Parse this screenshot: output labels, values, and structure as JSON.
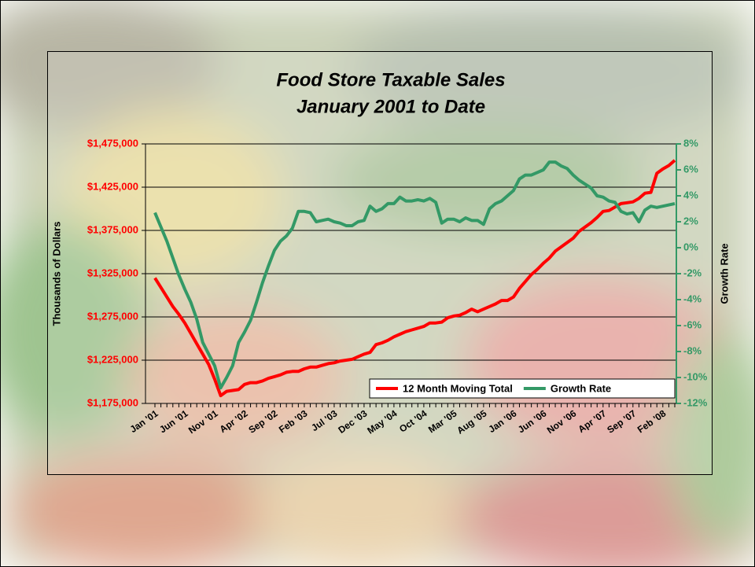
{
  "chart_data": {
    "type": "line",
    "title": "Food Store Taxable Sales",
    "subtitle": "January 2001 to Date",
    "ylabel": "Thousands of Dollars",
    "y2label": "Growth Rate",
    "categories": [
      "Jan '01",
      null,
      null,
      null,
      null,
      "Jun '01",
      null,
      null,
      null,
      null,
      "Nov '01",
      null,
      null,
      null,
      null,
      "Apr '02",
      null,
      null,
      null,
      null,
      "Sep '02",
      null,
      null,
      null,
      null,
      "Feb '03",
      null,
      null,
      null,
      null,
      "Jul '03",
      null,
      null,
      null,
      null,
      "Dec '03",
      null,
      null,
      null,
      null,
      "May '04",
      null,
      null,
      null,
      null,
      "Oct '04",
      null,
      null,
      null,
      null,
      "Mar '05",
      null,
      null,
      null,
      null,
      "Aug '05",
      null,
      null,
      null,
      null,
      "Jan '06",
      null,
      null,
      null,
      null,
      "Jun '06",
      null,
      null,
      null,
      null,
      "Nov '06",
      null,
      null,
      null,
      null,
      "Apr '07",
      null,
      null,
      null,
      null,
      "Sep '07",
      null,
      null,
      null,
      null,
      "Feb '08",
      null,
      null
    ],
    "series": [
      {
        "name": "12 Month Moving Total",
        "color": "#ff0000",
        "axis": "y",
        "values": [
          1320000,
          1309000,
          1298000,
          1287000,
          1278000,
          1268000,
          1256000,
          1244000,
          1232000,
          1220000,
          1203000,
          1184000,
          1189000,
          1190000,
          1191000,
          1197000,
          1199000,
          1199000,
          1201000,
          1204000,
          1206000,
          1208000,
          1211000,
          1212000,
          1212000,
          1215000,
          1217000,
          1217000,
          1219000,
          1221000,
          1222000,
          1224000,
          1225000,
          1226000,
          1229000,
          1232000,
          1234000,
          1243000,
          1245000,
          1248000,
          1252000,
          1255000,
          1258000,
          1260000,
          1262000,
          1264000,
          1268000,
          1268000,
          1269000,
          1274000,
          1276000,
          1277000,
          1280000,
          1284000,
          1281000,
          1284000,
          1287000,
          1290000,
          1294000,
          1294000,
          1298000,
          1308000,
          1316000,
          1324000,
          1330000,
          1337000,
          1343000,
          1351000,
          1356000,
          1361000,
          1366000,
          1374000,
          1379000,
          1384000,
          1390000,
          1397000,
          1398000,
          1402000,
          1406000,
          1407000,
          1408000,
          1412000,
          1418000,
          1419000,
          1441000,
          1446000,
          1450000,
          1456000
        ]
      },
      {
        "name": "Growth Rate",
        "color": "#339966",
        "axis": "y2",
        "values": [
          2.7,
          1.6,
          0.5,
          -0.8,
          -2.1,
          -3.2,
          -4.2,
          -5.5,
          -7.3,
          -8.2,
          -9.1,
          -10.8,
          -10.0,
          -9.1,
          -7.3,
          -6.5,
          -5.6,
          -4.2,
          -2.7,
          -1.4,
          -0.2,
          0.5,
          0.9,
          1.5,
          2.8,
          2.8,
          2.7,
          2.0,
          2.1,
          2.2,
          2.0,
          1.9,
          1.7,
          1.7,
          2.0,
          2.1,
          3.2,
          2.8,
          3.0,
          3.4,
          3.4,
          3.9,
          3.6,
          3.6,
          3.7,
          3.6,
          3.8,
          3.5,
          1.9,
          2.2,
          2.2,
          2.0,
          2.3,
          2.1,
          2.1,
          1.8,
          3.0,
          3.4,
          3.6,
          4.0,
          4.4,
          5.3,
          5.6,
          5.6,
          5.8,
          6.0,
          6.6,
          6.6,
          6.3,
          6.1,
          5.6,
          5.2,
          4.9,
          4.6,
          4.0,
          3.9,
          3.6,
          3.5,
          2.8,
          2.6,
          2.7,
          2.0,
          2.9,
          3.2,
          3.1,
          3.2,
          3.3,
          3.4
        ]
      }
    ],
    "ylim": [
      1175000,
      1475000
    ],
    "yticks": [
      {
        "value": 1175000,
        "label": "$1,175,000"
      },
      {
        "value": 1225000,
        "label": "$1,225,000"
      },
      {
        "value": 1275000,
        "label": "$1,275,000"
      },
      {
        "value": 1325000,
        "label": "$1,325,000"
      },
      {
        "value": 1375000,
        "label": "$1,375,000"
      },
      {
        "value": 1425000,
        "label": "$1,425,000"
      },
      {
        "value": 1475000,
        "label": "$1,475,000"
      }
    ],
    "y2lim": [
      -12,
      8
    ],
    "y2ticks": [
      {
        "value": -12,
        "label": "-12%"
      },
      {
        "value": -10,
        "label": "-10%"
      },
      {
        "value": -8,
        "label": "-8%"
      },
      {
        "value": -6,
        "label": "-6%"
      },
      {
        "value": -4,
        "label": "-4%"
      },
      {
        "value": -2,
        "label": "-2%"
      },
      {
        "value": 0,
        "label": "0%"
      },
      {
        "value": 2,
        "label": "2%"
      },
      {
        "value": 4,
        "label": "4%"
      },
      {
        "value": 6,
        "label": "6%"
      },
      {
        "value": 8,
        "label": "8%"
      }
    ],
    "grid": true,
    "legend": "lower right"
  }
}
